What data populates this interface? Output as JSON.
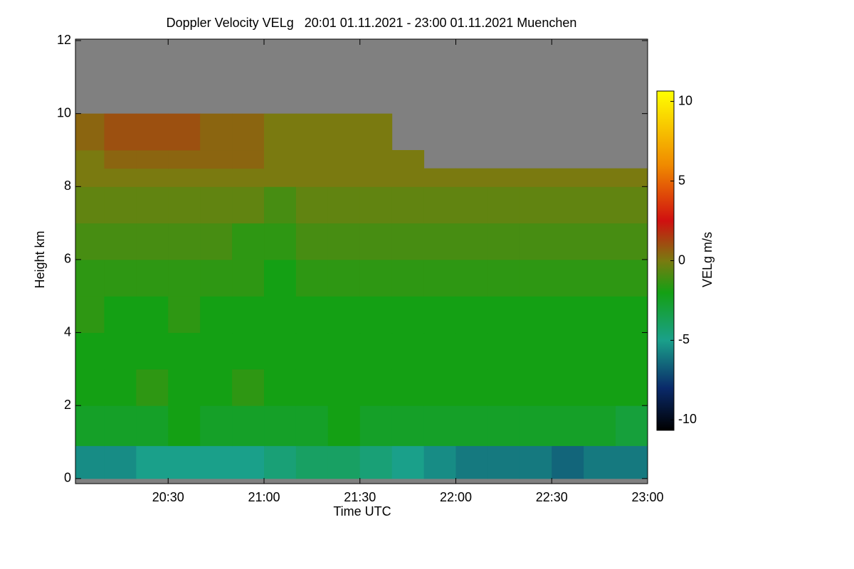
{
  "chart_data": {
    "type": "heatmap",
    "title": "Doppler Velocity VELg   20:01 01.11.2021 - 23:00 01.11.2021 Muenchen",
    "xlabel": "Time UTC",
    "ylabel": "Height km",
    "xlim": [
      1201,
      1380
    ],
    "xticks": [
      {
        "value": 1230,
        "label": "20:30"
      },
      {
        "value": 1260,
        "label": "21:00"
      },
      {
        "value": 1290,
        "label": "21:30"
      },
      {
        "value": 1320,
        "label": "22:00"
      },
      {
        "value": 1350,
        "label": "22:30"
      },
      {
        "value": 1380,
        "label": "23:00"
      }
    ],
    "ylim": [
      -0.14,
      12.04
    ],
    "yticks": [
      0,
      2,
      4,
      6,
      8,
      10,
      12
    ],
    "no_data_color": "#808080",
    "x_bins": [
      1201,
      1210,
      1220,
      1230,
      1240,
      1250,
      1260,
      1270,
      1280,
      1290,
      1300,
      1310,
      1320,
      1330,
      1340,
      1350,
      1360,
      1370,
      1380
    ],
    "y_bins": [
      0,
      0.9,
      2,
      3,
      4,
      5,
      6,
      7,
      8,
      8.5,
      9,
      10,
      12
    ],
    "z": [
      [
        -5.5,
        -5.5,
        -5,
        -5,
        -5,
        -5,
        -4.5,
        -4,
        -4,
        -4.5,
        -5,
        -5.5,
        -6,
        -6,
        -6,
        -6.5,
        -6,
        -6
      ],
      [
        -2.5,
        -2.5,
        -2.5,
        -2,
        -2.5,
        -2.5,
        -2.5,
        -2.5,
        -2,
        -2.5,
        -2.5,
        -2.5,
        -2.5,
        -2.5,
        -2.5,
        -2.5,
        -2.5,
        -3
      ],
      [
        -2,
        -2,
        -1.5,
        -2,
        -2,
        -1.5,
        -2,
        -2,
        -2,
        -2,
        -2,
        -2,
        -2,
        -2,
        -2,
        -2,
        -2,
        -2
      ],
      [
        -2,
        -2,
        -2,
        -2,
        -2,
        -2,
        -2,
        -2,
        -2,
        -2,
        -2,
        -2,
        -2,
        -2,
        -2,
        -2,
        -2,
        -2
      ],
      [
        -1.5,
        -2,
        -2,
        -1.5,
        -2,
        -2,
        -2,
        -2,
        -2,
        -2,
        -2,
        -2,
        -2,
        -2,
        -2,
        -2,
        -2,
        -2
      ],
      [
        -1.5,
        -1.5,
        -1.5,
        -1.5,
        -1.5,
        -1.5,
        -2,
        -1.5,
        -1.5,
        -1.5,
        -1.5,
        -1.5,
        -1.5,
        -1.5,
        -1.5,
        -1.5,
        -1.5,
        -1.5
      ],
      [
        -1,
        -1,
        -1,
        -1,
        -1,
        -1.5,
        -1.5,
        -1,
        -1,
        -1,
        -1,
        -1,
        -1,
        -1,
        -1,
        -1,
        -1,
        -1
      ],
      [
        -0.5,
        -0.5,
        -0.5,
        -0.5,
        -0.5,
        -0.5,
        -1,
        -0.5,
        -0.5,
        -0.5,
        -0.5,
        -0.5,
        -0.5,
        -0.5,
        -0.5,
        -0.5,
        -0.5,
        -0.5
      ],
      [
        0,
        0,
        0,
        0,
        0,
        0,
        0,
        0,
        0,
        0,
        0,
        0,
        0,
        0,
        0,
        0,
        0,
        0
      ],
      [
        0,
        0.5,
        0.5,
        0.5,
        0.5,
        0.5,
        0,
        0,
        0,
        0,
        0,
        null,
        null,
        null,
        null,
        null,
        null,
        null
      ],
      [
        0.5,
        1,
        1,
        1,
        0.5,
        0.5,
        0,
        0,
        0,
        0,
        null,
        null,
        null,
        null,
        null,
        null,
        null,
        null
      ],
      [
        null,
        null,
        null,
        null,
        null,
        null,
        null,
        null,
        null,
        null,
        null,
        null,
        null,
        null,
        null,
        null,
        null,
        null
      ]
    ],
    "colorbar": {
      "label": "VELg m/s",
      "lim": [
        -10.65,
        10.65
      ],
      "ticks": [
        -10,
        -5,
        0,
        5,
        10
      ]
    },
    "colormap": [
      {
        "value": -11,
        "color": "#000000"
      },
      {
        "value": -8,
        "color": "#0a2a6a"
      },
      {
        "value": -5,
        "color": "#1aa08a"
      },
      {
        "value": -2,
        "color": "#14a014"
      },
      {
        "value": 0,
        "color": "#7a7a10"
      },
      {
        "value": 2.5,
        "color": "#d01010"
      },
      {
        "value": 6,
        "color": "#f08a00"
      },
      {
        "value": 11,
        "color": "#ffff00"
      }
    ]
  }
}
